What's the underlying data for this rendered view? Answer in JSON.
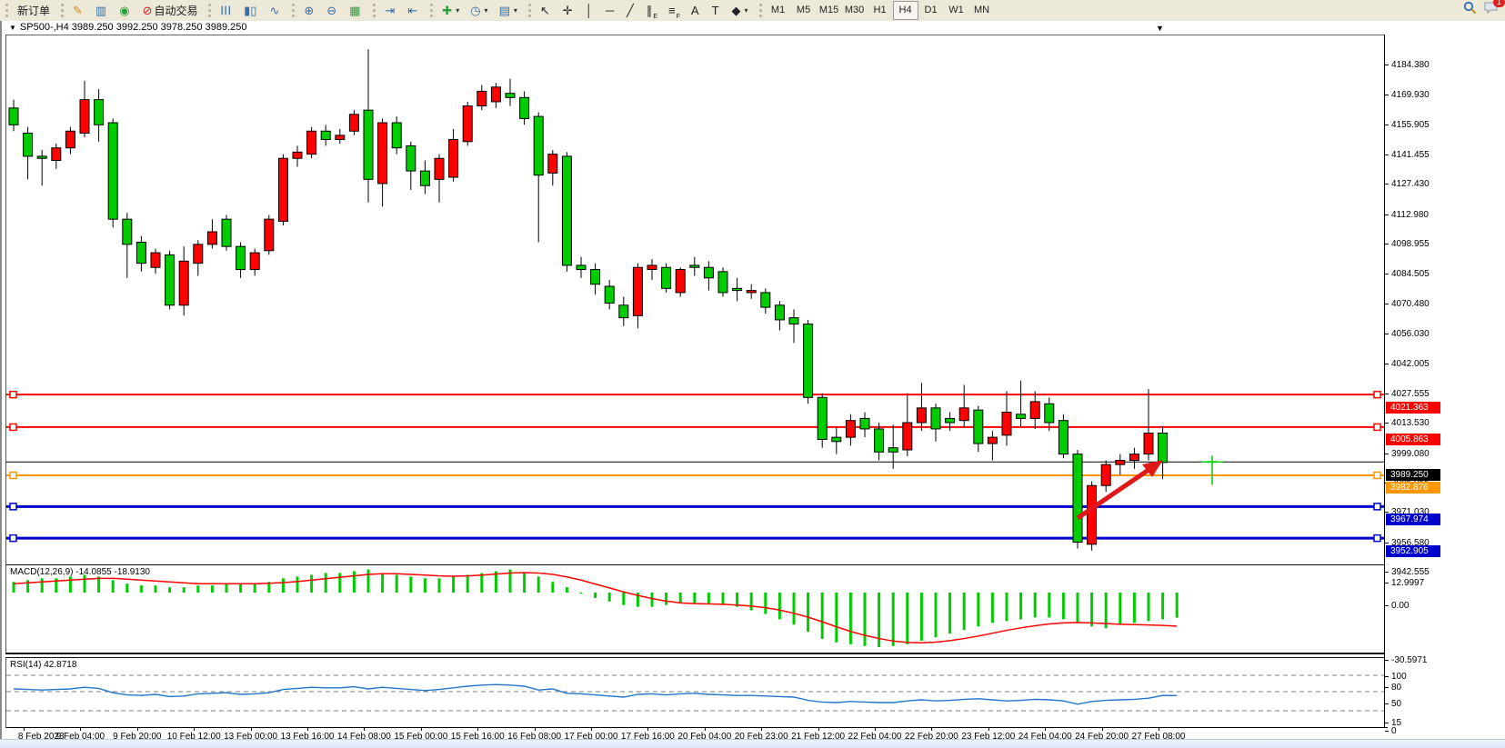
{
  "toolbar": {
    "new_order_label": "新订单",
    "autotrade_label": "自动交易",
    "chat_badge": "1",
    "timeframes": [
      "M1",
      "M5",
      "M15",
      "M30",
      "H1",
      "H4",
      "D1",
      "W1",
      "MN"
    ],
    "active_timeframe": "H4",
    "icon_groups": [
      [
        {
          "name": "new-order-button",
          "bind": "new_order_label"
        }
      ],
      [
        {
          "name": "crayon-icon",
          "glyph": "✎",
          "color": "#d78c1e"
        },
        {
          "name": "chart-window-icon",
          "glyph": "▥",
          "color": "#3b6ea5"
        },
        {
          "name": "community-icon",
          "glyph": "◉",
          "color": "#2e9e3f"
        },
        {
          "name": "autotrade-button",
          "glyph": "⊘",
          "color": "#cc2222",
          "bind": "autotrade_label"
        }
      ],
      [
        {
          "name": "bar-chart-icon",
          "glyph": "☰",
          "rot": true,
          "color": "#3b6ea5"
        },
        {
          "name": "candle-chart-icon",
          "glyph": "▮▯",
          "color": "#3b6ea5"
        },
        {
          "name": "line-chart-icon",
          "glyph": "∿",
          "color": "#3b6ea5"
        }
      ],
      [
        {
          "name": "zoom-in-icon",
          "glyph": "⊕",
          "color": "#3b6ea5"
        },
        {
          "name": "zoom-out-icon",
          "glyph": "⊖",
          "color": "#3b6ea5"
        },
        {
          "name": "tile-windows-icon",
          "glyph": "▦",
          "color": "#2e9e3f"
        }
      ],
      [
        {
          "name": "auto-scroll-icon",
          "glyph": "⇥",
          "color": "#3b6ea5"
        },
        {
          "name": "chart-shift-icon",
          "glyph": "⇤",
          "color": "#3b6ea5"
        }
      ],
      [
        {
          "name": "add-indicator-icon",
          "glyph": "✚",
          "color": "#2e9e3f",
          "caret": true
        },
        {
          "name": "period-clock-icon",
          "glyph": "◷",
          "color": "#3b6ea5",
          "caret": true
        },
        {
          "name": "template-icon",
          "glyph": "▤",
          "color": "#3b6ea5",
          "caret": true
        }
      ],
      [
        {
          "name": "cursor-icon",
          "glyph": "↖",
          "color": "#222"
        },
        {
          "name": "crosshair-icon",
          "glyph": "✛",
          "color": "#222"
        },
        {
          "name": "vertical-line-icon",
          "glyph": "│",
          "color": "#222"
        },
        {
          "name": "horizontal-line-icon",
          "glyph": "─",
          "color": "#222"
        },
        {
          "name": "trendline-icon",
          "glyph": "╱",
          "color": "#222"
        },
        {
          "name": "equidistant-channel-icon",
          "glyph": "∥",
          "sub": "E",
          "color": "#222"
        },
        {
          "name": "fibonacci-icon",
          "glyph": "≡",
          "sub": "F",
          "color": "#222"
        },
        {
          "name": "text-icon",
          "glyph": "A",
          "color": "#222"
        },
        {
          "name": "text-label-icon",
          "glyph": "T",
          "color": "#222"
        },
        {
          "name": "shapes-icon",
          "glyph": "◆",
          "color": "#222",
          "caret": true
        }
      ]
    ]
  },
  "chart": {
    "title_text": "SP500-,H4  3989.250 3992.250 3978.250 3989.250",
    "symbol": "SP500-",
    "period": "H4"
  },
  "price_axis_ticks": [
    "4184.380",
    "4169.930",
    "4155.905",
    "4141.455",
    "4127.430",
    "4112.980",
    "4098.955",
    "4084.505",
    "4070.480",
    "4056.030",
    "4042.005",
    "4027.555",
    "4013.530",
    "3999.080",
    "3985.055",
    "3971.030",
    "3956.580",
    "3942.555"
  ],
  "levels": [
    {
      "name": "resistance-line-1",
      "price": 4021.363,
      "label": "4021.363",
      "color": "#ff0000",
      "width": 2,
      "handles": true
    },
    {
      "name": "resistance-line-2",
      "price": 4005.863,
      "label": "4005.863",
      "color": "#ff0000",
      "width": 2,
      "handles": true
    },
    {
      "name": "bid-price-line",
      "price": 3989.25,
      "label": "3989.250",
      "color": "#000000",
      "width": 1,
      "handles": false
    },
    {
      "name": "support-line-orange",
      "price": 3982.876,
      "label": "3982.876",
      "color": "#ff9800",
      "width": 2,
      "handles": true
    },
    {
      "name": "support-line-blue-1",
      "price": 3967.974,
      "label": "3967.974",
      "color": "#0000cd",
      "width": 3,
      "handles": true
    },
    {
      "name": "support-line-blue-2",
      "price": 3952.905,
      "label": "3952.905",
      "color": "#0000cd",
      "width": 3,
      "handles": true
    }
  ],
  "macd": {
    "label": "MACD(12,26,9)",
    "values": "-14.0855 -18.9130",
    "axis": [
      "12.9997",
      "0.00",
      "-30.5971"
    ]
  },
  "rsi": {
    "label": "RSI(14)",
    "value": "42.8718",
    "axis": [
      100,
      80,
      50,
      15,
      0
    ],
    "dashed_levels": [
      80,
      50,
      15
    ]
  },
  "colors": {
    "bull": "#ff0000",
    "bear": "#00cc00",
    "wick": "#000000",
    "macd_hist": "#00cc00",
    "macd_signal": "#ff0000",
    "rsi_line": "#2277cc",
    "arrow": "#e01818",
    "cross": "#00cc00"
  },
  "chart_data": {
    "type": "candlestick",
    "title": "SP500-,H4",
    "current_ohlc": {
      "open": "3989.250",
      "high": "3992.250",
      "low": "3978.250",
      "close": "3989.250"
    },
    "ylim": [
      3942.555,
      4184.38
    ],
    "candles": [
      [
        4158,
        4162,
        4147,
        4150
      ],
      [
        4146,
        4149,
        4124,
        4135
      ],
      [
        4135,
        4138,
        4121,
        4134
      ],
      [
        4133,
        4141,
        4129,
        4139
      ],
      [
        4139,
        4149,
        4136,
        4147
      ],
      [
        4146,
        4171,
        4144,
        4162
      ],
      [
        4162,
        4167,
        4142,
        4150
      ],
      [
        4151,
        4153,
        4101,
        4105
      ],
      [
        4105,
        4108,
        4077,
        4093
      ],
      [
        4094,
        4097,
        4080,
        4084
      ],
      [
        4082,
        4091,
        4079,
        4089
      ],
      [
        4088,
        4090,
        4062,
        4064
      ],
      [
        4064,
        4092,
        4059,
        4085
      ],
      [
        4084,
        4095,
        4078,
        4093
      ],
      [
        4093,
        4105,
        4091,
        4099
      ],
      [
        4105,
        4107,
        4090,
        4092
      ],
      [
        4092,
        4094,
        4077,
        4081
      ],
      [
        4081,
        4091,
        4078,
        4089
      ],
      [
        4090,
        4107,
        4088,
        4105
      ],
      [
        4104,
        4136,
        4102,
        4134
      ],
      [
        4134,
        4140,
        4130,
        4137
      ],
      [
        4136,
        4149,
        4134,
        4147
      ],
      [
        4147,
        4150,
        4140,
        4143
      ],
      [
        4143,
        4148,
        4141,
        4145
      ],
      [
        4147,
        4157,
        4145,
        4155
      ],
      [
        4157,
        4186,
        4113,
        4124
      ],
      [
        4122,
        4153,
        4111,
        4151
      ],
      [
        4151,
        4154,
        4136,
        4139
      ],
      [
        4140,
        4142,
        4119,
        4128
      ],
      [
        4128,
        4133,
        4117,
        4121
      ],
      [
        4124,
        4136,
        4113,
        4134
      ],
      [
        4125,
        4148,
        4123,
        4143
      ],
      [
        4142,
        4161,
        4140,
        4159
      ],
      [
        4159,
        4169,
        4157,
        4166
      ],
      [
        4161,
        4170,
        4158,
        4168
      ],
      [
        4165,
        4172,
        4159,
        4163
      ],
      [
        4163,
        4166,
        4150,
        4153
      ],
      [
        4154,
        4156,
        4094,
        4126
      ],
      [
        4127,
        4138,
        4121,
        4136
      ],
      [
        4135,
        4137,
        4080,
        4083
      ],
      [
        4083,
        4087,
        4077,
        4081
      ],
      [
        4081,
        4084,
        4069,
        4074
      ],
      [
        4073,
        4076,
        4062,
        4065
      ],
      [
        4064,
        4068,
        4054,
        4058
      ],
      [
        4059,
        4084,
        4053,
        4082
      ],
      [
        4081,
        4086,
        4076,
        4083
      ],
      [
        4082,
        4084,
        4070,
        4072
      ],
      [
        4070,
        4082,
        4068,
        4081
      ],
      [
        4083,
        4087,
        4078,
        4082
      ],
      [
        4082,
        4085,
        4071,
        4077
      ],
      [
        4080,
        4082,
        4068,
        4070
      ],
      [
        4072,
        4077,
        4066,
        4071
      ],
      [
        4070,
        4074,
        4067,
        4071
      ],
      [
        4070,
        4072,
        4060,
        4063
      ],
      [
        4064,
        4066,
        4052,
        4057
      ],
      [
        4058,
        4062,
        4046,
        4055
      ],
      [
        4055,
        4057,
        4017,
        4020
      ],
      [
        4020,
        4022,
        3996,
        4000
      ],
      [
        4001,
        4006,
        3993,
        3999
      ],
      [
        4001,
        4012,
        3997,
        4009
      ],
      [
        4010,
        4013,
        4001,
        4005
      ],
      [
        4005,
        4008,
        3990,
        3994
      ],
      [
        3996,
        4007,
        3986,
        3994
      ],
      [
        3995,
        4022,
        3992,
        4008
      ],
      [
        4008,
        4027,
        4004,
        4015
      ],
      [
        4015,
        4017,
        3999,
        4005
      ],
      [
        4010,
        4013,
        4004,
        4008
      ],
      [
        4009,
        4026,
        4006,
        4015
      ],
      [
        4014,
        4016,
        3994,
        3998
      ],
      [
        3998,
        4004,
        3990,
        4001
      ],
      [
        4002,
        4023,
        3997,
        4013
      ],
      [
        4012,
        4028,
        4006,
        4010
      ],
      [
        4010,
        4023,
        4005,
        4018
      ],
      [
        4017,
        4020,
        4004,
        4008
      ],
      [
        4009,
        4012,
        3991,
        3993
      ],
      [
        3993,
        3995,
        3948,
        3951
      ],
      [
        3950,
        3980,
        3947,
        3978
      ],
      [
        3978,
        3990,
        3975,
        3988
      ],
      [
        3988,
        3993,
        3983,
        3990
      ],
      [
        3990,
        3996,
        3986,
        3993
      ],
      [
        3993,
        4024,
        3990,
        4003
      ],
      [
        4003,
        4006,
        3981,
        3989
      ]
    ],
    "forming_bar": {
      "o": 3989.25,
      "h": 3992.25,
      "l": 3978.25,
      "c": 3989.25
    },
    "macd_hist": [
      6,
      7,
      8,
      8,
      9,
      10,
      9,
      7,
      5,
      4,
      4,
      3,
      3,
      4,
      4,
      5,
      5,
      5,
      6,
      8,
      9,
      10,
      11,
      11,
      12,
      13,
      11,
      10,
      9,
      8,
      8,
      9,
      10,
      11,
      12,
      13,
      11,
      9,
      6,
      3,
      0,
      -3,
      -5,
      -7,
      -8,
      -8,
      -7,
      -6,
      -6,
      -6,
      -7,
      -8,
      -10,
      -12,
      -15,
      -18,
      -22,
      -26,
      -28,
      -29,
      -30,
      -30.6,
      -30,
      -29,
      -27,
      -25,
      -23,
      -21,
      -19,
      -17,
      -16,
      -15,
      -14,
      -14,
      -15,
      -17,
      -19,
      -20,
      -18,
      -17,
      -16,
      -15,
      -14.1
    ],
    "macd_signal": [
      5,
      5.5,
      6,
      6.5,
      7,
      7.5,
      8,
      8,
      7.5,
      7,
      6.5,
      6,
      5.5,
      5,
      5,
      5,
      5,
      5,
      5.2,
      5.6,
      6.2,
      7,
      7.8,
      8.6,
      9.4,
      10.2,
      10.6,
      10.6,
      10.2,
      9.8,
      9.4,
      9.2,
      9.4,
      9.8,
      10.4,
      11,
      11.2,
      11,
      10.2,
      8.8,
      7,
      4.8,
      2.6,
      0.4,
      -1.6,
      -3.4,
      -4.8,
      -5.8,
      -6.2,
      -6.4,
      -6.6,
      -7,
      -7.6,
      -8.5,
      -9.8,
      -11.6,
      -13.8,
      -16.4,
      -19.2,
      -21.8,
      -24,
      -25.8,
      -27.2,
      -28,
      -28.2,
      -27.8,
      -27,
      -25.8,
      -24.4,
      -22.8,
      -21.2,
      -19.8,
      -18.6,
      -17.6,
      -17,
      -16.8,
      -17,
      -17.4,
      -17.8,
      -18,
      -18.2,
      -18.4,
      -18.9
    ],
    "rsi_values": [
      55,
      54,
      53,
      54,
      55,
      58,
      56,
      48,
      44,
      43,
      45,
      41,
      42,
      46,
      47,
      48,
      45,
      46,
      48,
      54,
      56,
      58,
      57,
      57,
      59,
      55,
      58,
      56,
      54,
      52,
      54,
      57,
      60,
      62,
      63,
      62,
      60,
      53,
      55,
      47,
      46,
      44,
      42,
      40,
      45,
      46,
      44,
      46,
      47,
      45,
      44,
      43,
      43,
      42,
      41,
      40,
      34,
      31,
      30,
      32,
      31,
      30,
      30,
      33,
      35,
      33,
      34,
      36,
      37,
      35,
      33,
      34,
      36,
      35,
      33,
      27,
      32,
      34,
      35,
      36,
      38,
      43,
      42.87
    ],
    "time_labels": [
      "8 Feb 2023",
      "9 Feb 04:00",
      "9 Feb 20:00",
      "10 Feb 12:00",
      "13 Feb 00:00",
      "13 Feb 16:00",
      "14 Feb 08:00",
      "15 Feb 00:00",
      "15 Feb 16:00",
      "16 Feb 08:00",
      "17 Feb 00:00",
      "17 Feb 16:00",
      "20 Feb 04:00",
      "20 Feb 23:00",
      "21 Feb 12:00",
      "22 Feb 04:00",
      "22 Feb 20:00",
      "23 Feb 12:00",
      "24 Feb 04:00",
      "24 Feb 20:00",
      "27 Feb 08:00"
    ]
  }
}
